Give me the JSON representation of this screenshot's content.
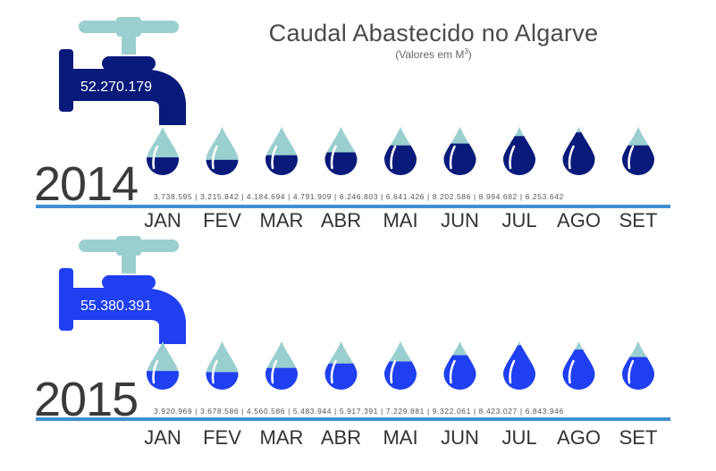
{
  "header": {
    "title": "Caudal Abastecido no Algarve",
    "subtitle_prefix": "(Valores em M",
    "subtitle_sup": "3",
    "subtitle_suffix": ")"
  },
  "colors": {
    "tap_metal": "#9bcfcf",
    "year_2014": "#0a1a7a",
    "year_2015": "#1f3ff0",
    "drop_empty": "#9bcfcf",
    "baseline": "#3f8fd2"
  },
  "chart_data": [
    {
      "type": "bar",
      "year": "2014",
      "total": "52.270.179",
      "categories": [
        "JAN",
        "FEV",
        "MAR",
        "ABR",
        "MAI",
        "JUN",
        "JUL",
        "AGO",
        "SET"
      ],
      "values": [
        3738595,
        3215842,
        4184694,
        4791909,
        6246803,
        6641426,
        8202586,
        8994682,
        6253642
      ],
      "value_labels": [
        "3.738.595",
        "3.215.842",
        "4.184.694",
        "4.791.909",
        "6.246.803",
        "6.641.426",
        "8.202.586",
        "8.994.682",
        "6.253.642"
      ],
      "value_separator": " | ",
      "fill_color": "#0a1a7a"
    },
    {
      "type": "bar",
      "year": "2015",
      "total": "55.380.391",
      "categories": [
        "JAN",
        "FEV",
        "MAR",
        "ABR",
        "MAI",
        "JUN",
        "JUL",
        "AGO",
        "SET"
      ],
      "values": [
        3920969,
        3678586,
        4560586,
        5483944,
        5917391,
        7229881,
        9322061,
        8423027,
        6843946
      ],
      "value_labels": [
        "3.920.969",
        "3.678.586",
        "4.560.586",
        "5.483.944",
        "5.917.391",
        "7.229.881",
        "9.322.061",
        "8.423.027",
        "6.843.946"
      ],
      "value_separator": " | ",
      "fill_color": "#1f3ff0"
    }
  ]
}
